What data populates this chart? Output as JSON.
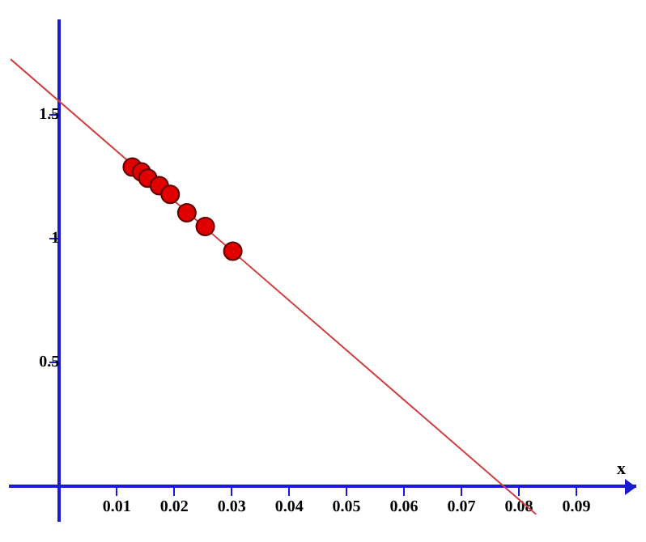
{
  "chart_data": {
    "type": "scatter",
    "xlabel": "x",
    "xlim": [
      -0.0085,
      0.1003
    ],
    "ylim": [
      -0.14,
      1.88
    ],
    "xticks": [
      0.01,
      0.02,
      0.03,
      0.04,
      0.05,
      0.06,
      0.07,
      0.08,
      0.09
    ],
    "yticks": [
      0.5,
      1,
      1.5
    ],
    "grid": false,
    "legend": false,
    "marker": "circle",
    "series": [
      {
        "color": "#e00000",
        "x": [
          0.0127,
          0.0143,
          0.0154,
          0.0174,
          0.0193,
          0.0222,
          0.0254,
          0.0302
        ],
        "values": [
          1.29,
          1.27,
          1.245,
          1.215,
          1.18,
          1.105,
          1.05,
          0.95
        ]
      },
      {
        "type": "line",
        "color": "#d04040",
        "x": [
          -0.0085,
          0.083
        ],
        "values": [
          1.726,
          -0.113
        ],
        "marker": "none"
      }
    ]
  }
}
